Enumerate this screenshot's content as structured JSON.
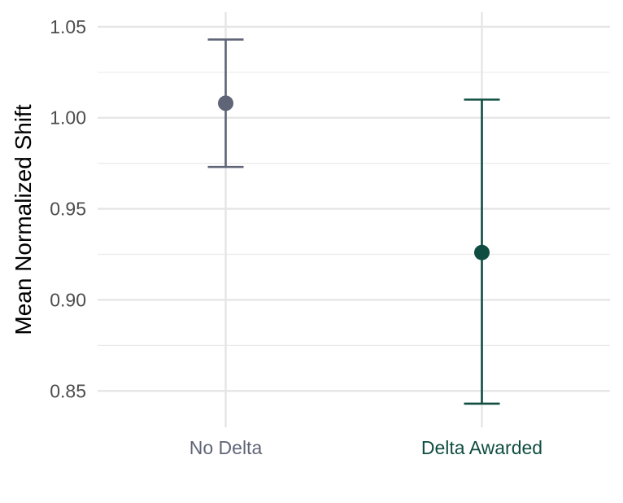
{
  "chart_data": {
    "type": "errorbar",
    "title": "",
    "xlabel": "",
    "ylabel": "Mean Normalized Shift",
    "ylim": [
      0.83,
      1.058
    ],
    "yticks": [
      "0.85",
      "0.90",
      "0.95",
      "1.00",
      "1.05"
    ],
    "grid": true,
    "legend": "none",
    "categories": [
      "No Delta",
      "Delta Awarded"
    ],
    "colors": [
      "#5f6577",
      "#0f4d40"
    ],
    "points": [
      {
        "category": "No Delta",
        "mean": 1.008,
        "lower": 0.973,
        "upper": 1.043
      },
      {
        "category": "Delta Awarded",
        "mean": 0.926,
        "lower": 0.843,
        "upper": 1.01
      }
    ]
  }
}
